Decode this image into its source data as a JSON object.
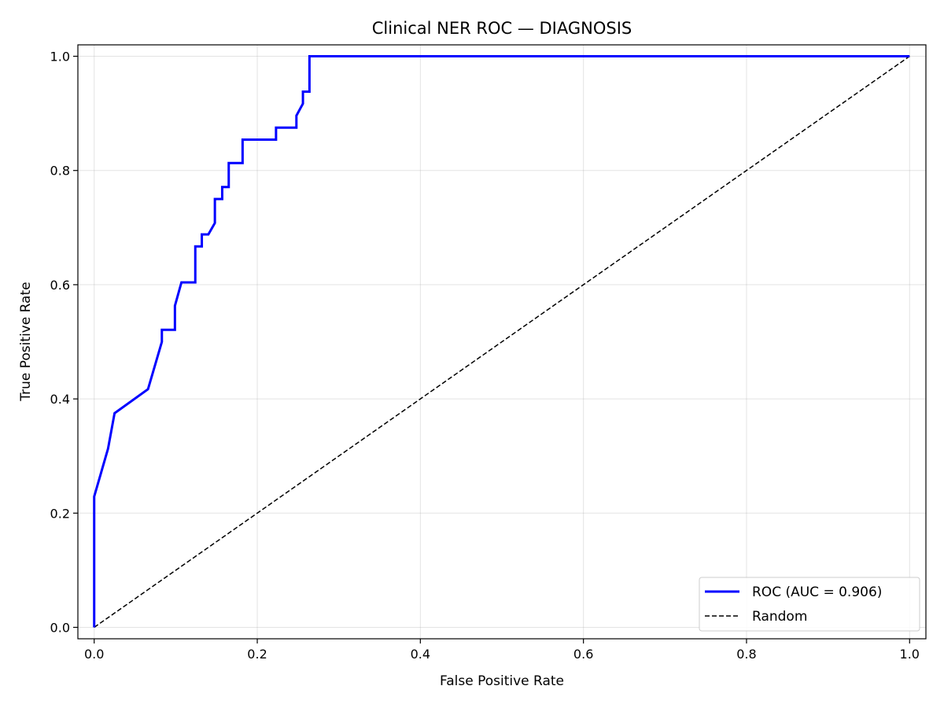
{
  "chart_data": {
    "type": "line",
    "title": "Clinical NER ROC — DIAGNOSIS",
    "xlabel": "False Positive Rate",
    "ylabel": "True Positive Rate",
    "xlim": [
      -0.02,
      1.02
    ],
    "ylim": [
      -0.02,
      1.02
    ],
    "x_ticks": [
      0.0,
      0.2,
      0.4,
      0.6,
      0.8,
      1.0
    ],
    "y_ticks": [
      0.0,
      0.2,
      0.4,
      0.6,
      0.8,
      1.0
    ],
    "x_tick_labels": [
      "0.0",
      "0.2",
      "0.4",
      "0.6",
      "0.8",
      "1.0"
    ],
    "y_tick_labels": [
      "0.0",
      "0.2",
      "0.4",
      "0.6",
      "0.8",
      "1.0"
    ],
    "grid": true,
    "legend_position": "bottom-right",
    "series": [
      {
        "name": "ROC (AUC = 0.906)",
        "color": "#0000ff",
        "style": "solid",
        "x": [
          0.0,
          0.0,
          0.0,
          0.017,
          0.025,
          0.066,
          0.083,
          0.083,
          0.099,
          0.099,
          0.107,
          0.124,
          0.124,
          0.132,
          0.132,
          0.14,
          0.148,
          0.148,
          0.157,
          0.157,
          0.165,
          0.165,
          0.182,
          0.182,
          0.223,
          0.223,
          0.248,
          0.248,
          0.256,
          0.256,
          0.264,
          0.264,
          0.5,
          1.0
        ],
        "y": [
          0.0,
          0.1,
          0.229,
          0.313,
          0.375,
          0.417,
          0.5,
          0.521,
          0.521,
          0.563,
          0.604,
          0.604,
          0.667,
          0.667,
          0.688,
          0.688,
          0.708,
          0.75,
          0.75,
          0.771,
          0.771,
          0.813,
          0.813,
          0.854,
          0.854,
          0.875,
          0.875,
          0.896,
          0.917,
          0.938,
          0.938,
          1.0,
          1.0,
          1.0
        ]
      },
      {
        "name": "Random",
        "color": "#000000",
        "style": "dashed",
        "x": [
          0.0,
          1.0
        ],
        "y": [
          0.0,
          1.0
        ]
      }
    ]
  }
}
